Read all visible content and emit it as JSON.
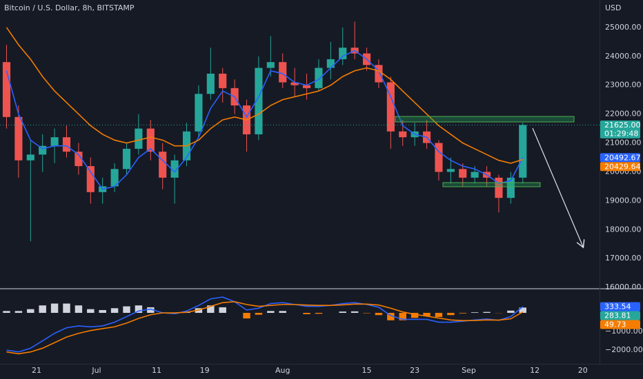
{
  "chart_data": [
    {
      "type": "candlestick",
      "title": "Bitcoin / U.S. Dollar, 8h, BITSTAMP",
      "y_axis_label": "USD",
      "x": [
        -5,
        -3,
        -1,
        1,
        3,
        5,
        7,
        9,
        11,
        13,
        15,
        17,
        19,
        21,
        23,
        25,
        27,
        29,
        31,
        33,
        35,
        37,
        39,
        41,
        43,
        45,
        47,
        49,
        51,
        53,
        55,
        57,
        59,
        61,
        63,
        65,
        67,
        69,
        71,
        73,
        75,
        77,
        79,
        81
      ],
      "open": [
        23800,
        21900,
        20400,
        20600,
        20900,
        21200,
        20700,
        20200,
        19300,
        19500,
        20100,
        20800,
        21500,
        20700,
        19800,
        20400,
        21400,
        22700,
        23400,
        22900,
        22300,
        21300,
        23600,
        23800,
        23100,
        23000,
        22900,
        23600,
        23900,
        24300,
        24100,
        23700,
        23100,
        21400,
        21200,
        21400,
        21000,
        20000,
        20100,
        19800,
        20000,
        19800,
        19100,
        19800
      ],
      "high": [
        24400,
        22300,
        21100,
        21300,
        21500,
        21600,
        21000,
        20500,
        19800,
        20300,
        21000,
        22000,
        21800,
        21000,
        20600,
        21700,
        23000,
        24300,
        23600,
        23200,
        22500,
        24000,
        24700,
        24100,
        23600,
        23400,
        23900,
        24500,
        25000,
        25200,
        24300,
        23900,
        23300,
        21800,
        21700,
        21800,
        21100,
        20500,
        20300,
        20200,
        20200,
        19900,
        20000,
        21700
      ],
      "low": [
        21500,
        19800,
        17600,
        20000,
        20300,
        20500,
        19900,
        18900,
        18900,
        19300,
        19900,
        20600,
        20400,
        19400,
        18900,
        20200,
        21200,
        22500,
        22400,
        22000,
        20700,
        21100,
        23300,
        22900,
        22600,
        22500,
        22800,
        23200,
        23700,
        23900,
        23500,
        22900,
        20800,
        20900,
        20900,
        20800,
        19700,
        19600,
        19500,
        19600,
        19500,
        18600,
        18900,
        19600
      ],
      "close": [
        21900,
        20400,
        20600,
        20900,
        21200,
        20700,
        20200,
        19300,
        19500,
        20100,
        20800,
        21500,
        20700,
        19800,
        20400,
        21400,
        22700,
        23400,
        22900,
        22300,
        21300,
        23600,
        23800,
        23100,
        23000,
        22900,
        23600,
        23900,
        24300,
        24100,
        23700,
        23100,
        21400,
        21200,
        21400,
        21000,
        20000,
        20100,
        19800,
        20000,
        19800,
        19100,
        19800,
        21625
      ],
      "up_color": "#26a69a",
      "down_color": "#ef5350",
      "lines": [
        {
          "color": "#2962ff",
          "values": [
            23500,
            22000,
            21100,
            20800,
            20900,
            20900,
            20600,
            20000,
            19400,
            19500,
            19900,
            20500,
            20800,
            20400,
            20000,
            20500,
            21200,
            22200,
            22800,
            22600,
            21900,
            22600,
            23500,
            23400,
            23100,
            23000,
            23200,
            23600,
            24000,
            24200,
            23900,
            23500,
            22600,
            21600,
            21300,
            21200,
            20700,
            20400,
            20200,
            20100,
            19900,
            19600,
            19700,
            20492.67
          ]
        },
        {
          "color": "#f57c00",
          "values": [
            25000,
            24400,
            23900,
            23300,
            22800,
            22400,
            22000,
            21600,
            21300,
            21100,
            21000,
            21100,
            21200,
            21100,
            20900,
            20900,
            21100,
            21500,
            21800,
            21900,
            21800,
            22000,
            22300,
            22500,
            22600,
            22700,
            22800,
            23000,
            23300,
            23500,
            23600,
            23500,
            23200,
            22800,
            22400,
            22000,
            21600,
            21300,
            21000,
            20800,
            20600,
            20400,
            20300,
            20429.64
          ]
        }
      ],
      "tags": [
        {
          "value": 21625,
          "label": "21625.00",
          "color": "#26a69a"
        },
        {
          "value": 20492.67,
          "label": "20492.67",
          "color": "#2962ff"
        },
        {
          "value": 20429.64,
          "label": "20429.64",
          "color": "#f57c00"
        }
      ],
      "countdown": "01:29:48",
      "xlim": [
        -6.09,
        93.9
      ],
      "xticks": [
        {
          "value": 0,
          "label": "21"
        },
        {
          "value": 10,
          "label": "Jul"
        },
        {
          "value": 20,
          "label": "11"
        },
        {
          "value": 28,
          "label": "19"
        },
        {
          "value": 41,
          "label": "Aug"
        },
        {
          "value": 55,
          "label": "15"
        },
        {
          "value": 63,
          "label": "23"
        },
        {
          "value": 72,
          "label": "Sep"
        },
        {
          "value": 83,
          "label": "12"
        },
        {
          "value": 91,
          "label": "20"
        }
      ],
      "ylim": [
        15980,
        25950
      ],
      "yticks": [
        {
          "value": 16000,
          "label": "16000.00"
        },
        {
          "value": 17000,
          "label": "17000.00"
        },
        {
          "value": 18000,
          "label": "18000.00"
        },
        {
          "value": 19000,
          "label": "19000.00"
        },
        {
          "value": 20000,
          "label": "20000.00"
        },
        {
          "value": 21000,
          "label": "21000.00"
        },
        {
          "value": 22000,
          "label": "22000.00"
        },
        {
          "value": 23000,
          "label": "23000.00"
        },
        {
          "value": 24000,
          "label": "24000.00"
        },
        {
          "value": 25000,
          "label": "25000.00"
        }
      ],
      "grid": false
    },
    {
      "type": "macd",
      "histogram": {
        "up_color": "#d1d4dc",
        "down_color": "#f57c00",
        "values": [
          100,
          100,
          200,
          400,
          500,
          500,
          400,
          200,
          150,
          250,
          350,
          400,
          300,
          0,
          -50,
          70,
          250,
          400,
          300,
          0,
          -300,
          -100,
          100,
          100,
          0,
          -70,
          -50,
          0,
          70,
          80,
          -20,
          -120,
          -400,
          -400,
          -270,
          -170,
          -220,
          -120,
          -30,
          30,
          50,
          -10,
          120,
          283.81
        ]
      },
      "lines": [
        {
          "color": "#2962ff",
          "values": [
            -2000,
            -2100,
            -1900,
            -1500,
            -1100,
            -800,
            -700,
            -750,
            -700,
            -500,
            -200,
            100,
            200,
            0,
            -50,
            100,
            400,
            750,
            850,
            600,
            150,
            250,
            500,
            550,
            450,
            350,
            350,
            400,
            500,
            550,
            450,
            300,
            -150,
            -350,
            -350,
            -350,
            -500,
            -500,
            -450,
            -380,
            -330,
            -400,
            -200,
            333.54
          ]
        },
        {
          "color": "#f57c00",
          "values": [
            -2100,
            -2200,
            -2100,
            -1900,
            -1600,
            -1300,
            -1100,
            -950,
            -850,
            -750,
            -550,
            -300,
            -100,
            0,
            0,
            30,
            150,
            350,
            550,
            600,
            450,
            350,
            400,
            450,
            450,
            420,
            400,
            400,
            430,
            470,
            470,
            420,
            250,
            50,
            -80,
            -180,
            -280,
            -380,
            -420,
            -410,
            -380,
            -390,
            -320,
            49.73
          ]
        }
      ],
      "tags": [
        {
          "value": 333.54,
          "label": "333.54",
          "color": "#2962ff"
        },
        {
          "value": 283.81,
          "label": "283.81",
          "color": "#26a69a"
        },
        {
          "value": 49.73,
          "label": "49.73",
          "color": "#f57c00"
        }
      ],
      "ylim": [
        -2740,
        1260
      ],
      "yticks": [
        {
          "value": -1000,
          "label": "−1000.00"
        },
        {
          "value": -2000,
          "label": "−2000.00"
        }
      ]
    }
  ]
}
